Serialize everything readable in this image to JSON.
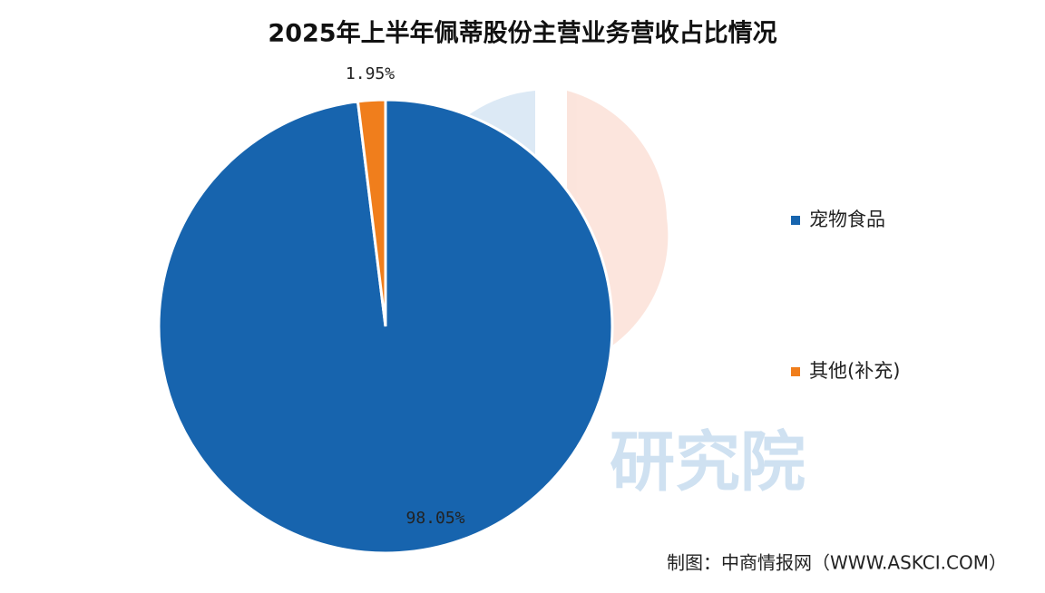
{
  "chart_data": {
    "type": "pie",
    "title": "2025年上半年佩蒂股份主营业务营收占比情况",
    "categories": [
      "宠物食品",
      "其他(补充)"
    ],
    "values": [
      98.05,
      1.95
    ],
    "value_labels": [
      "98.05%",
      "1.95%"
    ],
    "colors": [
      "#1764ae",
      "#f07e1c"
    ],
    "legend": "right",
    "source": "制图：中商情报网（WWW.ASKCI.COM）",
    "watermark": "研究院"
  }
}
